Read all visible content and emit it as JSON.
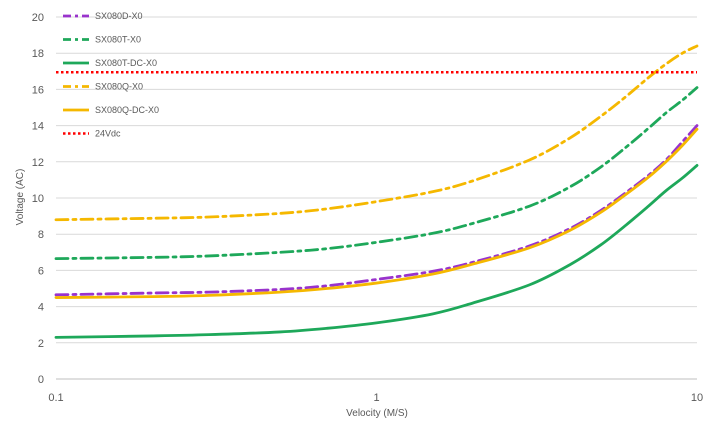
{
  "chart_data": {
    "type": "line",
    "title": "",
    "xlabel": "Velocity (M/S)",
    "ylabel": "Voltage (AC)",
    "x_scale": "log",
    "xlim": [
      0.1,
      10
    ],
    "ylim": [
      0,
      20
    ],
    "x_ticks": [
      0.1,
      1,
      10
    ],
    "x_tick_labels": [
      "0.1",
      "1",
      "10"
    ],
    "y_ticks": [
      0,
      2,
      4,
      6,
      8,
      10,
      12,
      14,
      16,
      18,
      20
    ],
    "y_tick_labels": [
      "0",
      "2",
      "4",
      "6",
      "8",
      "10",
      "12",
      "14",
      "16",
      "18",
      "20"
    ],
    "grid": "horizontal",
    "legend_position": "top-left",
    "x": [
      0.1,
      0.2,
      0.3,
      0.5,
      0.7,
      1,
      1.5,
      2,
      3,
      4,
      5,
      6,
      7,
      8,
      9,
      10
    ],
    "series": [
      {
        "name": "SX080D-X0",
        "color": "#9933cc",
        "dash": "dashdot",
        "values": [
          4.65,
          4.75,
          4.8,
          4.95,
          5.15,
          5.5,
          5.95,
          6.45,
          7.35,
          8.3,
          9.3,
          10.3,
          11.2,
          12.1,
          13.1,
          14.0
        ]
      },
      {
        "name": "SX080T-X0",
        "color": "#1ea85a",
        "dash": "dashdot",
        "values": [
          6.65,
          6.72,
          6.8,
          7.0,
          7.2,
          7.55,
          8.05,
          8.6,
          9.55,
          10.6,
          11.7,
          12.8,
          13.8,
          14.7,
          15.4,
          16.1
        ]
      },
      {
        "name": "SX080T-DC-X0",
        "color": "#1ea85a",
        "dash": "solid",
        "values": [
          2.3,
          2.38,
          2.45,
          2.6,
          2.8,
          3.1,
          3.6,
          4.2,
          5.2,
          6.3,
          7.4,
          8.5,
          9.5,
          10.4,
          11.1,
          11.8
        ]
      },
      {
        "name": "SX080Q-X0",
        "color": "#f5b800",
        "dash": "dashdot",
        "values": [
          8.8,
          8.88,
          8.95,
          9.15,
          9.4,
          9.8,
          10.35,
          10.95,
          12.1,
          13.3,
          14.5,
          15.6,
          16.6,
          17.4,
          18.0,
          18.4
        ]
      },
      {
        "name": "SX080Q-DC-X0",
        "color": "#f5b800",
        "dash": "solid",
        "values": [
          4.5,
          4.55,
          4.62,
          4.8,
          5.0,
          5.3,
          5.8,
          6.35,
          7.25,
          8.2,
          9.2,
          10.2,
          11.1,
          12.0,
          12.9,
          13.8
        ]
      },
      {
        "name": "24Vdc",
        "color": "#ff0000",
        "dash": "dotted",
        "values": [
          16.95,
          16.95,
          16.95,
          16.95,
          16.95,
          16.95,
          16.95,
          16.95,
          16.95,
          16.95,
          16.95,
          16.95,
          16.95,
          16.95,
          16.95,
          16.95
        ]
      }
    ]
  }
}
